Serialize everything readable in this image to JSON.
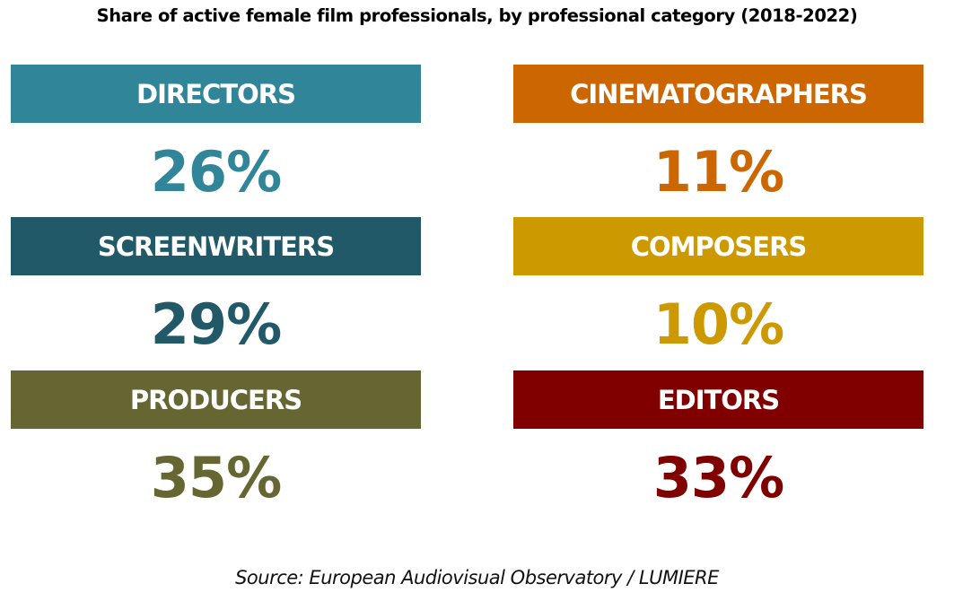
{
  "title": "Share of active female film professionals, by professional category (2018-2022)",
  "source": "Source: European Audiovisual Observatory / LUMIERE",
  "cards": [
    {
      "label": "DIRECTORS",
      "value": "26%",
      "color": "#318599"
    },
    {
      "label": "CINEMATOGRAPHERS",
      "value": "11%",
      "color": "#cc6600"
    },
    {
      "label": "SCREENWRITERS",
      "value": "29%",
      "color": "#215968"
    },
    {
      "label": "COMPOSERS",
      "value": "10%",
      "color": "#cc9900"
    },
    {
      "label": "PRODUCERS",
      "value": "35%",
      "color": "#666633"
    },
    {
      "label": "EDITORS",
      "value": "33%",
      "color": "#800000"
    }
  ],
  "chart_data": {
    "type": "table",
    "title": "Share of active female film professionals, by professional category (2018-2022)",
    "categories": [
      "Directors",
      "Cinematographers",
      "Screenwriters",
      "Composers",
      "Producers",
      "Editors"
    ],
    "values": [
      26,
      11,
      29,
      10,
      35,
      33
    ],
    "unit": "%",
    "colors": [
      "#318599",
      "#cc6600",
      "#215968",
      "#cc9900",
      "#666633",
      "#800000"
    ],
    "layout": "2-column grid of labeled KPI cards (3 rows)",
    "source": "European Audiovisual Observatory / LUMIERE"
  }
}
